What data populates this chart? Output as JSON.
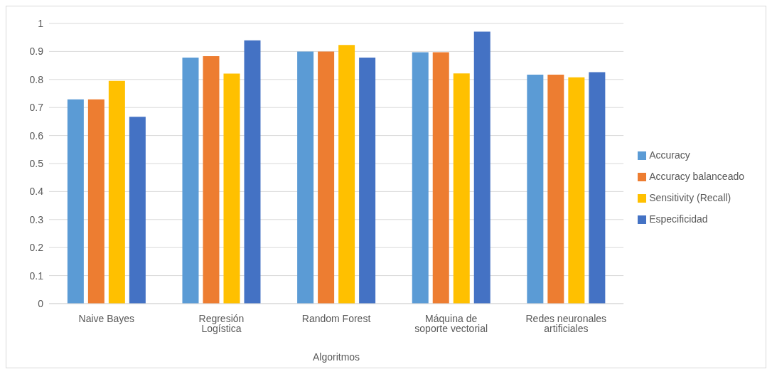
{
  "chart_data": {
    "type": "bar",
    "xlabel": "Algoritmos",
    "categories": [
      "Naive Bayes",
      "Regresión Logística",
      "Random Forest",
      "Máquina de soporte vectorial",
      "Redes neuronales artificiales"
    ],
    "series": [
      {
        "name": "Accuracy",
        "color": "#5b9bd5",
        "values": [
          0.729,
          0.878,
          0.9,
          0.897,
          0.817
        ]
      },
      {
        "name": "Accuracy balanceado",
        "color": "#ed7d31",
        "values": [
          0.729,
          0.883,
          0.9,
          0.897,
          0.817
        ]
      },
      {
        "name": "Sensitivity (Recall)",
        "color": "#ffc000",
        "values": [
          0.795,
          0.821,
          0.923,
          0.822,
          0.808
        ]
      },
      {
        "name": "Especificidad",
        "color": "#4472c4",
        "values": [
          0.667,
          0.94,
          0.878,
          0.971,
          0.826
        ]
      }
    ],
    "ylim": [
      0,
      1
    ],
    "yticks": [
      0,
      0.1,
      0.2,
      0.3,
      0.4,
      0.5,
      0.6,
      0.7,
      0.8,
      0.9,
      1
    ],
    "grid": "y",
    "legend": "right"
  }
}
